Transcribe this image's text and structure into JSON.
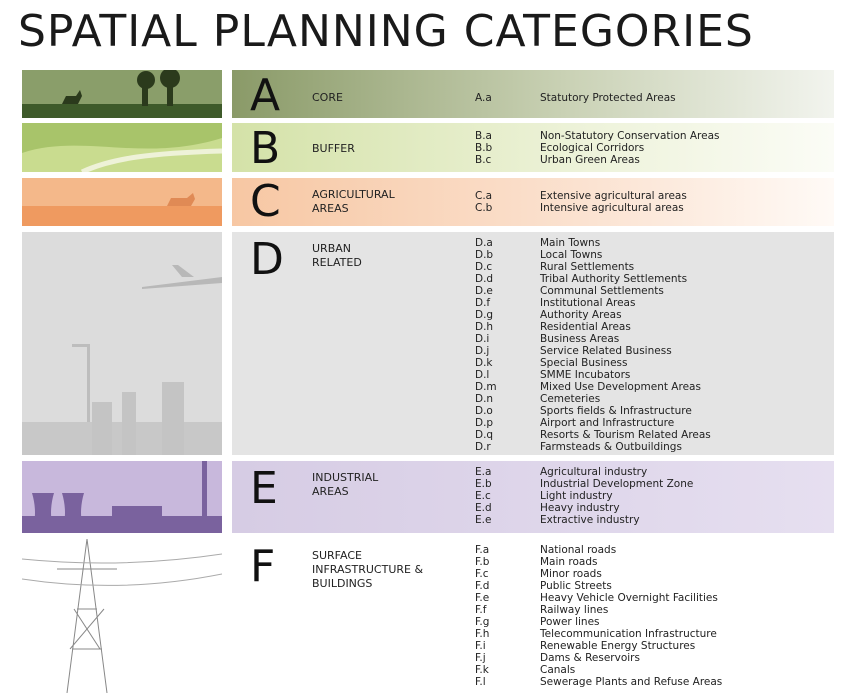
{
  "title": "SPATIAL PLANNING CATEGORIES",
  "sections": [
    {
      "letter": "A",
      "label": [
        "CORE"
      ],
      "items": [
        {
          "code": "A.a",
          "name": "Statutory Protected Areas"
        }
      ]
    },
    {
      "letter": "B",
      "label": [
        "BUFFER"
      ],
      "items": [
        {
          "code": "B.a",
          "name": "Non-Statutory Conservation Areas"
        },
        {
          "code": "B.b",
          "name": "Ecological Corridors"
        },
        {
          "code": "B.c",
          "name": "Urban Green Areas"
        }
      ]
    },
    {
      "letter": "C",
      "label": [
        "AGRICULTURAL",
        "AREAS"
      ],
      "items": [
        {
          "code": "C.a",
          "name": "Extensive agricultural areas"
        },
        {
          "code": "C.b",
          "name": "Intensive agricultural areas"
        }
      ]
    },
    {
      "letter": "D",
      "label": [
        "URBAN",
        "RELATED"
      ],
      "items": [
        {
          "code": "D.a",
          "name": "Main Towns"
        },
        {
          "code": "D.b",
          "name": "Local Towns"
        },
        {
          "code": "D.c",
          "name": "Rural Settlements"
        },
        {
          "code": "D.d",
          "name": "Tribal Authority Settlements"
        },
        {
          "code": "D.e",
          "name": "Communal Settlements"
        },
        {
          "code": "D.f",
          "name": "Institutional Areas"
        },
        {
          "code": "D.g",
          "name": "Authority Areas"
        },
        {
          "code": "D.h",
          "name": "Residential Areas"
        },
        {
          "code": "D.i",
          "name": "Business Areas"
        },
        {
          "code": "D.j",
          "name": "Service Related Business"
        },
        {
          "code": "D.k",
          "name": "Special Business"
        },
        {
          "code": "D.l",
          "name": "SMME Incubators"
        },
        {
          "code": "D.m",
          "name": "Mixed Use Development Areas"
        },
        {
          "code": "D.n",
          "name": "Cemeteries"
        },
        {
          "code": "D.o",
          "name": "Sports fields & Infrastructure"
        },
        {
          "code": "D.p",
          "name": "Airport and Infrastructure"
        },
        {
          "code": "D.q",
          "name": "Resorts & Tourism Related Areas"
        },
        {
          "code": "D.r",
          "name": "Farmsteads & Outbuildings"
        }
      ]
    },
    {
      "letter": "E",
      "label": [
        "INDUSTRIAL",
        "AREAS"
      ],
      "items": [
        {
          "code": "E.a",
          "name": "Agricultural industry"
        },
        {
          "code": "E.b",
          "name": "Industrial Development Zone"
        },
        {
          "code": "E.c",
          "name": "Light industry"
        },
        {
          "code": "E.d",
          "name": "Heavy industry"
        },
        {
          "code": "E.e",
          "name": "Extractive industry"
        }
      ]
    },
    {
      "letter": "F",
      "label": [
        "SURFACE",
        "INFRASTRUCTURE &",
        "BUILDINGS"
      ],
      "items": [
        {
          "code": "F.a",
          "name": "National roads"
        },
        {
          "code": "F.b",
          "name": "Main roads"
        },
        {
          "code": "F.c",
          "name": "Minor roads"
        },
        {
          "code": "F.d",
          "name": "Public Streets"
        },
        {
          "code": "F.e",
          "name": "Heavy Vehicle Overnight Facilities"
        },
        {
          "code": "F.f",
          "name": "Railway lines"
        },
        {
          "code": "F.g",
          "name": "Power lines"
        },
        {
          "code": "F.h",
          "name": "Telecommunication Infrastructure"
        },
        {
          "code": "F.i",
          "name": "Renewable Energy Structures"
        },
        {
          "code": "F.j",
          "name": "Dams & Reservoirs"
        },
        {
          "code": "F.k",
          "name": "Canals"
        },
        {
          "code": "F.l",
          "name": "Sewerage Plants and Refuse Areas"
        }
      ]
    }
  ]
}
